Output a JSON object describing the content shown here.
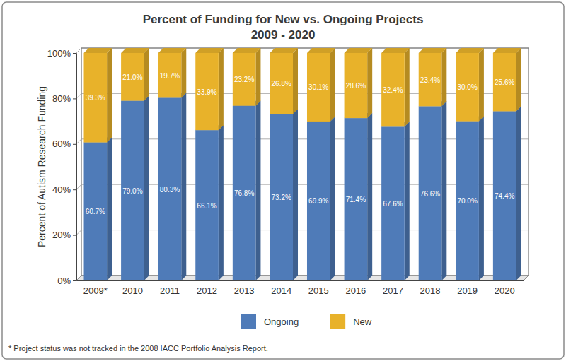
{
  "chart_data": {
    "type": "bar",
    "title": "Percent of Funding for New vs. Ongoing Projects",
    "subtitle": "2009 - 2020",
    "y_label": "Percent of Autism Research Funding",
    "note": "* Project status was not tracked in the 2008 IACC Portfolio Analysis Report.",
    "categories": [
      "2009*",
      "2010",
      "2011",
      "2012",
      "2013",
      "2014",
      "2015",
      "2016",
      "2017",
      "2018",
      "2019",
      "2020"
    ],
    "series": [
      {
        "name": "Ongoing",
        "color": "#4f7bb8",
        "values": [
          60.7,
          79.0,
          80.3,
          66.1,
          76.8,
          73.2,
          69.9,
          71.4,
          67.6,
          76.6,
          70.0,
          74.4
        ],
        "value_labels": [
          "60.7%",
          "79.0%",
          "80.3%",
          "66.1%",
          "76.8%",
          "73.2%",
          "69.9%",
          "71.4%",
          "67.6%",
          "76.6%",
          "70.0%",
          "74.4%"
        ]
      },
      {
        "name": "New",
        "color": "#e8b22a",
        "values": [
          39.3,
          21.0,
          19.7,
          33.9,
          23.2,
          26.8,
          30.1,
          28.6,
          32.4,
          23.4,
          30.0,
          25.6
        ],
        "value_labels": [
          "39.3%",
          "21.0%",
          "19.7%",
          "33.9%",
          "23.2%",
          "26.8%",
          "30.1%",
          "28.6%",
          "32.4%",
          "23.4%",
          "30.0%",
          "25.6%"
        ]
      }
    ],
    "ylim": [
      0,
      100
    ],
    "yticks": [
      {
        "value": 0,
        "label": "0%"
      },
      {
        "value": 20,
        "label": "20%"
      },
      {
        "value": 40,
        "label": "40%"
      },
      {
        "value": 60,
        "label": "60%"
      },
      {
        "value": 80,
        "label": "80%"
      },
      {
        "value": 100,
        "label": "100%"
      }
    ],
    "stacked": true,
    "data_labels": true,
    "grid": true,
    "legend": "bottom"
  }
}
